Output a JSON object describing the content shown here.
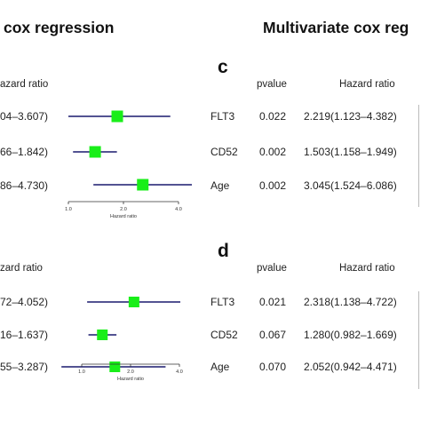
{
  "titles": {
    "left": "cox regression",
    "right": "Multivariate cox reg"
  },
  "colors": {
    "marker": "#19ee19",
    "line": "#1a1a6e"
  },
  "panel_left_top": {
    "header": "azard ratio",
    "rows": [
      {
        "text": "04–3.607)"
      },
      {
        "text": "66–1.842)"
      },
      {
        "text": "86–4.730)"
      }
    ]
  },
  "panel_left_bottom": {
    "header": "zard ratio",
    "rows": [
      {
        "text": "72–4.052)"
      },
      {
        "text": "16–1.637)"
      },
      {
        "text": "55–3.287)"
      }
    ]
  },
  "panel_c": {
    "letter": "c",
    "header_pvalue": "pvalue",
    "header_hr": "Hazard ratio",
    "rows": [
      {
        "label": "FLT3",
        "pvalue": "0.022",
        "hr": "2.219(1.123–4.382)"
      },
      {
        "label": "CD52",
        "pvalue": "0.002",
        "hr": "1.503(1.158–1.949)"
      },
      {
        "label": "Age",
        "pvalue": "0.002",
        "hr": "3.045(1.524–6.086)"
      }
    ]
  },
  "panel_d": {
    "letter": "d",
    "header_pvalue": "pvalue",
    "header_hr": "Hazard ratio",
    "rows": [
      {
        "label": "FLT3",
        "pvalue": "0.021",
        "hr": "2.318(1.138–4.722)"
      },
      {
        "label": "CD52",
        "pvalue": "0.067",
        "hr": "1.280(0.982–1.669)"
      },
      {
        "label": "Age",
        "pvalue": "0.070",
        "hr": "2.052(0.942–4.471)"
      }
    ]
  },
  "chart_data": [
    {
      "type": "scatter",
      "title": "",
      "xlabel": "Hazard ratio",
      "xlim": [
        1.0,
        4.0
      ],
      "xticks": [
        "1.0",
        "2.0",
        "4.0"
      ],
      "xscale": "log",
      "series": [
        {
          "values": [
            {
              "estimate": 1.85,
              "lower": 1.0,
              "upper": 3.607
            },
            {
              "estimate": 1.4,
              "lower": 1.06,
              "upper": 1.842
            },
            {
              "estimate": 2.55,
              "lower": 1.37,
              "upper": 4.73
            }
          ]
        }
      ]
    },
    {
      "type": "scatter",
      "title": "",
      "xlabel": "Hazard ratio",
      "xlim": [
        1.0,
        4.0
      ],
      "xticks": [
        "1.0",
        "2.0",
        "4.0"
      ],
      "xscale": "log",
      "series": [
        {
          "values": [
            {
              "estimate": 2.1,
              "lower": 1.08,
              "upper": 4.052
            },
            {
              "estimate": 1.34,
              "lower": 1.1,
              "upper": 1.637
            },
            {
              "estimate": 1.6,
              "lower": 0.75,
              "upper": 3.287
            }
          ]
        }
      ]
    }
  ]
}
